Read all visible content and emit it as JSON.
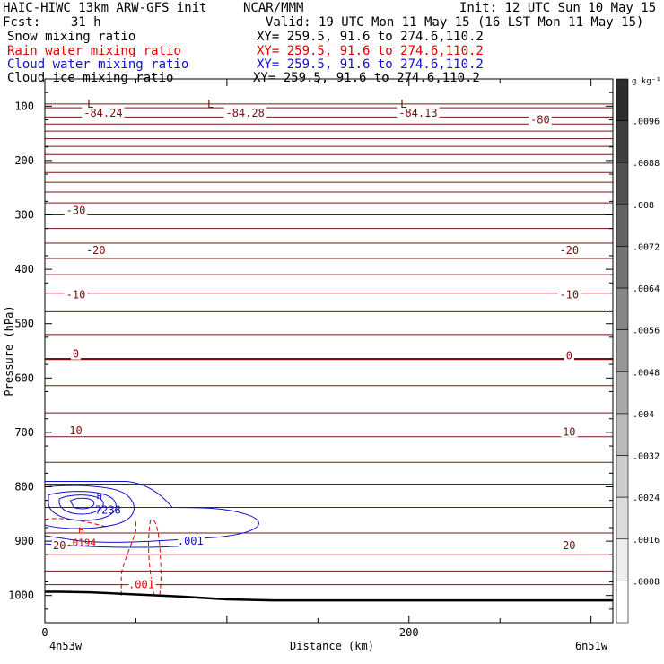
{
  "header": {
    "title_left": "HAIC-HIWC 13km ARW-GFS init",
    "org": "NCAR/MMM",
    "init": "Init: 12 UTC Sun 10 May 15",
    "fcst": "Fcst:    31 h",
    "valid": "Valid: 19 UTC Mon 11 May 15 (16 LST Mon 11 May 15)"
  },
  "fields": [
    {
      "label": "Snow mixing ratio",
      "xy": "XY= 259.5, 91.6 to 274.6,110.2",
      "color": "#000000"
    },
    {
      "label": "Rain water mixing ratio",
      "xy": "XY= 259.5, 91.6 to 274.6,110.2",
      "color": "#e00000"
    },
    {
      "label": "Cloud water mixing ratio",
      "xy": "XY= 259.5, 91.6 to 274.6,110.2",
      "color": "#1010d0"
    },
    {
      "label": "Cloud ice mixing ratio",
      "xy": "XY= 259.5, 91.6 to 274.6,110.2",
      "color": "#000000"
    }
  ],
  "colors": {
    "temperature": "#7a1010",
    "rain": "#e00000",
    "cloud_water": "#1010d0",
    "terrain": "#000000"
  },
  "chart_data": {
    "type": "line",
    "title": "",
    "xlabel": "Distance (km)",
    "ylabel": "Pressure (hPa)",
    "x_ticks": [
      0,
      200
    ],
    "x_range": [
      0,
      312
    ],
    "y_ticks": [
      100,
      200,
      300,
      400,
      500,
      600,
      700,
      800,
      900,
      1000
    ],
    "y_range": [
      50,
      1050
    ],
    "y_axis_inverted": true,
    "left_end_label": "4n53w",
    "right_end_label": "6n51w",
    "colorbar": {
      "unit": "g kg⁻¹",
      "ticks": [
        ".0096",
        ".0088",
        ".008",
        ".0072",
        ".0064",
        ".0056",
        ".0048",
        ".004",
        ".0032",
        ".0024",
        ".0016",
        ".0008"
      ]
    },
    "temperature_labels": [
      {
        "text": "-84.24",
        "x": 32,
        "p": 113
      },
      {
        "text": "-84.28",
        "x": 110,
        "p": 113
      },
      {
        "text": "-84.13",
        "x": 205,
        "p": 113
      },
      {
        "text": "-80",
        "x": 272,
        "p": 125
      },
      {
        "text": "-30",
        "x": 17,
        "p": 292
      },
      {
        "text": "-20",
        "x": 28,
        "p": 365
      },
      {
        "text": "-20",
        "x": 288,
        "p": 365
      },
      {
        "text": "-10",
        "x": 17,
        "p": 447
      },
      {
        "text": "-10",
        "x": 288,
        "p": 447
      },
      {
        "text": "0",
        "x": 17,
        "p": 556
      },
      {
        "text": "0",
        "x": 288,
        "p": 559
      },
      {
        "text": "10",
        "x": 17,
        "p": 697
      },
      {
        "text": "10",
        "x": 288,
        "p": 699
      },
      {
        "text": "20",
        "x": 8,
        "p": 908
      },
      {
        "text": "20",
        "x": 288,
        "p": 908
      }
    ],
    "lows": [
      {
        "text": "L",
        "x": 25,
        "p": 96
      },
      {
        "text": "L",
        "x": 91,
        "p": 96
      },
      {
        "text": "L",
        "x": 197,
        "p": 96
      }
    ],
    "cloud_water": {
      "max_label": "H",
      "max_value": ".7238",
      "x": 28,
      "p": 833,
      "contour_label": ".001",
      "contour_label_x": 80,
      "contour_label_p": 900
    },
    "rain_water": {
      "max_label": "H",
      "max_value": ".0194",
      "x": 20,
      "p": 889,
      "contour_label": ".001",
      "contour_label_x": 53,
      "contour_label_p": 980
    },
    "terrain": {
      "x": [
        0,
        8,
        25,
        50,
        75,
        100,
        125,
        312
      ],
      "p": [
        993,
        993,
        994,
        998,
        1002,
        1007,
        1009,
        1009
      ]
    }
  }
}
